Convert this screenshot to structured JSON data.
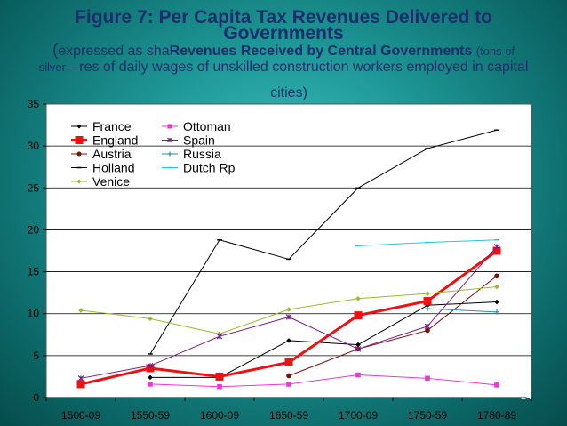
{
  "slide": {
    "title_line1": "Figure 7: Per Capita Tax Revenues Delivered to",
    "title_line2": "Governments",
    "subtitle_line1_open": "(",
    "subtitle_line1_a": "expressed as sha",
    "subtitle_line1_b": "Revenues Received by Central Governments",
    "subtitle_line1_c": "(tons of",
    "subtitle_line2_a": "silver –",
    "subtitle_line2_b": "res of daily wages of unskilled construction workers employed in capital",
    "subtitle_line3": "cities)",
    "page_number": "24"
  },
  "chart_data": {
    "type": "line",
    "categories": [
      "1500-09",
      "1550-59",
      "1600-09",
      "1650-59",
      "1700-09",
      "1750-59",
      "1780-89"
    ],
    "ylim": [
      0,
      35
    ],
    "yticks": [
      "0",
      "5",
      "10",
      "15",
      "20",
      "25",
      "30",
      "35"
    ],
    "grid": true,
    "legend_position": "top-left",
    "series": [
      {
        "name": "France",
        "color": "#000000",
        "marker": "diamond",
        "values": [
          null,
          2.4,
          2.4,
          6.8,
          6.3,
          11.0,
          11.4
        ]
      },
      {
        "name": "England",
        "color": "#ee1111",
        "marker": "square",
        "thick": true,
        "values": [
          1.6,
          3.5,
          2.5,
          4.2,
          9.8,
          11.5,
          17.5
        ]
      },
      {
        "name": "Austria",
        "color": "#7a0f0f",
        "marker": "circle",
        "values": [
          null,
          null,
          null,
          2.6,
          5.8,
          8.0,
          14.5
        ]
      },
      {
        "name": "Holland",
        "color": "#000000",
        "marker": "dash",
        "values": [
          null,
          5.2,
          18.8,
          16.5,
          25.0,
          29.7,
          31.9
        ]
      },
      {
        "name": "Venice",
        "color": "#9abb2a",
        "marker": "diamond",
        "values": [
          10.4,
          9.4,
          7.6,
          10.5,
          11.8,
          12.4,
          13.2
        ]
      },
      {
        "name": "Ottoman",
        "color": "#e838d8",
        "marker": "square",
        "values": [
          null,
          1.6,
          1.3,
          1.6,
          2.7,
          2.3,
          1.5
        ]
      },
      {
        "name": "Spain",
        "color": "#7a1f88",
        "marker": "star",
        "values": [
          2.3,
          3.8,
          7.3,
          9.6,
          5.8,
          8.5,
          18.0
        ]
      },
      {
        "name": "Russia",
        "color": "#2a8ea8",
        "marker": "plus",
        "values": [
          null,
          null,
          null,
          null,
          null,
          10.6,
          10.2
        ]
      },
      {
        "name": "Dutch Rp",
        "color": "#2bc4e0",
        "marker": "dash",
        "values": [
          null,
          null,
          null,
          null,
          18.1,
          18.5,
          18.8
        ]
      }
    ]
  }
}
